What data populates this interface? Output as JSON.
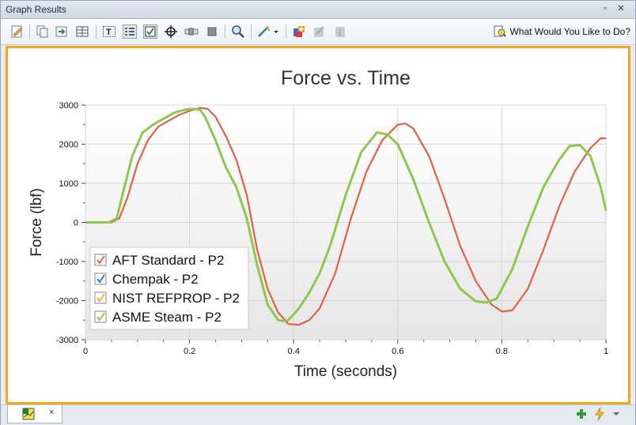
{
  "window": {
    "title": "Graph Results"
  },
  "toolbar": {
    "buttons": [
      "edit-icon",
      "copy-icon",
      "export-icon",
      "table-icon",
      "text-icon",
      "legend-icon",
      "checkbox-icon",
      "crosshair-icon",
      "slider-icon",
      "stop-icon",
      "zoom-icon",
      "wand-icon",
      "add-graph-icon",
      "disabled-tool-icon",
      "disabled-info-icon"
    ],
    "help_label": "What Would You Like to Do?"
  },
  "chart_data": {
    "type": "line",
    "title": "Force vs. Time",
    "xlabel": "Time (seconds)",
    "ylabel": "Force (lbf)",
    "xlim": [
      0,
      1
    ],
    "ylim": [
      -3000,
      3000
    ],
    "xticks": [
      "0",
      "0.2",
      "0.4",
      "0.6",
      "0.8",
      "1"
    ],
    "xtick_values": [
      0,
      0.2,
      0.4,
      0.6,
      0.8,
      1
    ],
    "yticks": [
      "3000",
      "2000",
      "1000",
      "0",
      "-1000",
      "-2000",
      "-3000"
    ],
    "ytick_values": [
      3000,
      2000,
      1000,
      0,
      -1000,
      -2000,
      -3000
    ],
    "grid": true,
    "legend_position": "bottom-left",
    "series": [
      {
        "name": "AFT Standard - P2",
        "color": "#e06048",
        "visible": true,
        "x": [
          0,
          0.05,
          0.065,
          0.08,
          0.1,
          0.12,
          0.14,
          0.16,
          0.18,
          0.2,
          0.22,
          0.235,
          0.25,
          0.27,
          0.29,
          0.31,
          0.33,
          0.35,
          0.37,
          0.39,
          0.41,
          0.43,
          0.45,
          0.48,
          0.51,
          0.54,
          0.57,
          0.6,
          0.615,
          0.63,
          0.66,
          0.69,
          0.72,
          0.75,
          0.78,
          0.8,
          0.82,
          0.85,
          0.88,
          0.91,
          0.94,
          0.97,
          0.99,
          1.0
        ],
        "y": [
          0,
          0,
          100,
          600,
          1500,
          2100,
          2450,
          2600,
          2750,
          2850,
          2930,
          2900,
          2700,
          2200,
          1600,
          700,
          -700,
          -1700,
          -2300,
          -2600,
          -2620,
          -2500,
          -2200,
          -1300,
          100,
          1300,
          2100,
          2500,
          2530,
          2400,
          1700,
          600,
          -600,
          -1500,
          -2100,
          -2280,
          -2250,
          -1700,
          -700,
          400,
          1300,
          1900,
          2150,
          2150
        ]
      },
      {
        "name": "Chempak - P2",
        "color": "#2a7fc0",
        "visible": false,
        "x": [],
        "y": []
      },
      {
        "name": "NIST REFPROP - P2",
        "color": "#f2b134",
        "visible": false,
        "x": [],
        "y": []
      },
      {
        "name": "ASME Steam - P2",
        "color": "#8cc850",
        "visible": true,
        "x": [
          0,
          0.045,
          0.06,
          0.075,
          0.09,
          0.11,
          0.13,
          0.15,
          0.17,
          0.19,
          0.21,
          0.22,
          0.23,
          0.25,
          0.27,
          0.29,
          0.31,
          0.33,
          0.35,
          0.37,
          0.38,
          0.39,
          0.41,
          0.43,
          0.45,
          0.47,
          0.5,
          0.53,
          0.56,
          0.58,
          0.6,
          0.63,
          0.66,
          0.69,
          0.72,
          0.75,
          0.77,
          0.79,
          0.82,
          0.85,
          0.88,
          0.91,
          0.93,
          0.95,
          0.97,
          0.99,
          1.0
        ],
        "y": [
          0,
          0,
          100,
          900,
          1700,
          2300,
          2500,
          2650,
          2800,
          2880,
          2900,
          2880,
          2700,
          2100,
          1400,
          900,
          100,
          -1100,
          -2100,
          -2500,
          -2520,
          -2500,
          -2200,
          -1800,
          -1300,
          -600,
          700,
          1800,
          2300,
          2250,
          2000,
          1100,
          0,
          -1000,
          -1700,
          -2020,
          -2050,
          -1950,
          -1200,
          -100,
          900,
          1600,
          1950,
          1980,
          1700,
          900,
          300
        ]
      }
    ]
  },
  "bottombar": {
    "tab_close": "×",
    "add_icon": "plus-icon",
    "run_icon": "lightning-icon"
  }
}
